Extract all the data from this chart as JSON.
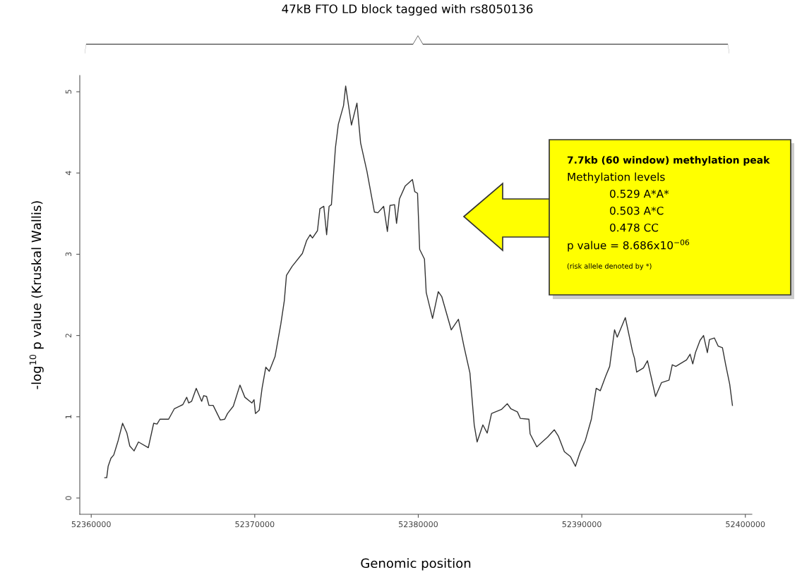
{
  "chart_data": {
    "type": "line",
    "title": "47kB FTO LD block tagged with rs8050136",
    "xlabel": "Genomic position",
    "ylabel": "-log$^{10}$ p value (Kruskal Wallis)",
    "annotations": [
      "7.7kb (60 window) methylation peak",
      "Methylation levels",
      "0.529 A*A*",
      "0.503 A*C",
      "0.478 CC",
      "p value = 8.686x10$^{−06}$",
      "(risk allele denoted by *)"
    ],
    "x": [
      52360828,
      52360948,
      52361034,
      52361207,
      52361379,
      52361651,
      52361918,
      52362181,
      52362358,
      52362620,
      52362888,
      52363491,
      52363819,
      52364026,
      52364202,
      52364732,
      52365086,
      52365603,
      52365840,
      52365961,
      52366137,
      52366422,
      52366754,
      52366879,
      52367055,
      52367198,
      52367456,
      52367896,
      52368163,
      52368336,
      52368689,
      52369094,
      52369396,
      52369827,
      52369956,
      52370042,
      52370271,
      52370447,
      52370676,
      52370887,
      52371240,
      52371594,
      52371809,
      52371939,
      52372284,
      52372913,
      52373176,
      52373387,
      52373529,
      52373835,
      52373986,
      52374223,
      52374395,
      52374546,
      52374688,
      52374934,
      52375111,
      52375430,
      52375559,
      52375913,
      52376249,
      52376473,
      52376861,
      52377318,
      52377529,
      52377882,
      52378111,
      52378270,
      52378550,
      52378671,
      52378848,
      52379201,
      52379641,
      52379783,
      52379955,
      52380085,
      52380378,
      52380485,
      52380873,
      52381222,
      52381434,
      52382015,
      52382455,
      52382800,
      52383158,
      52383421,
      52383597,
      52383951,
      52384214,
      52384481,
      52385084,
      52385446,
      52385657,
      52386063,
      52386239,
      52386765,
      52386838,
      52387248,
      52387912,
      52388317,
      52388571,
      52388933,
      52389308,
      52389610,
      52389890,
      52390217,
      52390584,
      52390881,
      52391127,
      52391459,
      52391704,
      52392002,
      52392166,
      52392661,
      52393105,
      52393221,
      52393355,
      52393765,
      52394015,
      52394510,
      52394872,
      52395333,
      52395532,
      52395747,
      52396407,
      52396622,
      52396786,
      52396950,
      52397230,
      52397445,
      52397678,
      52397807,
      52398105,
      52398337,
      52398600,
      52398799,
      52399044,
      52399212
    ],
    "series": [
      {
        "color": "#333333",
        "values": [
          0.25,
          0.25,
          0.39,
          0.49,
          0.53,
          0.71,
          0.92,
          0.8,
          0.64,
          0.58,
          0.69,
          0.62,
          0.92,
          0.91,
          0.97,
          0.97,
          1.1,
          1.15,
          1.24,
          1.17,
          1.19,
          1.35,
          1.19,
          1.26,
          1.25,
          1.14,
          1.14,
          0.96,
          0.97,
          1.04,
          1.13,
          1.39,
          1.24,
          1.17,
          1.21,
          1.04,
          1.08,
          1.35,
          1.61,
          1.56,
          1.74,
          2.14,
          2.43,
          2.74,
          2.85,
          3.01,
          3.17,
          3.24,
          3.2,
          3.29,
          3.56,
          3.59,
          3.24,
          3.59,
          3.61,
          4.31,
          4.6,
          4.83,
          5.07,
          4.59,
          4.86,
          4.37,
          4.02,
          3.52,
          3.51,
          3.59,
          3.28,
          3.6,
          3.61,
          3.38,
          3.68,
          3.84,
          3.92,
          3.77,
          3.75,
          3.06,
          2.94,
          2.53,
          2.21,
          2.54,
          2.48,
          2.07,
          2.2,
          1.86,
          1.54,
          0.9,
          0.69,
          0.9,
          0.8,
          1.04,
          1.09,
          1.16,
          1.1,
          1.06,
          0.98,
          0.97,
          0.79,
          0.63,
          0.75,
          0.84,
          0.76,
          0.57,
          0.51,
          0.39,
          0.56,
          0.71,
          0.97,
          1.35,
          1.32,
          1.5,
          1.62,
          2.07,
          1.98,
          2.22,
          1.8,
          1.72,
          1.55,
          1.6,
          1.69,
          1.25,
          1.42,
          1.45,
          1.64,
          1.62,
          1.7,
          1.77,
          1.65,
          1.79,
          1.94,
          2.0,
          1.79,
          1.95,
          1.97,
          1.87,
          1.85,
          1.64,
          1.4,
          1.14
        ]
      }
    ],
    "xlim": [
      52359300,
      52400400
    ],
    "xticks": [
      52360000,
      52370000,
      52380000,
      52390000,
      52400000
    ],
    "ylim": [
      -0.2,
      5.2
    ],
    "yticks": [
      0,
      1,
      2,
      3,
      4,
      5
    ],
    "grid": false,
    "line_style": "solid",
    "marker": "none"
  }
}
